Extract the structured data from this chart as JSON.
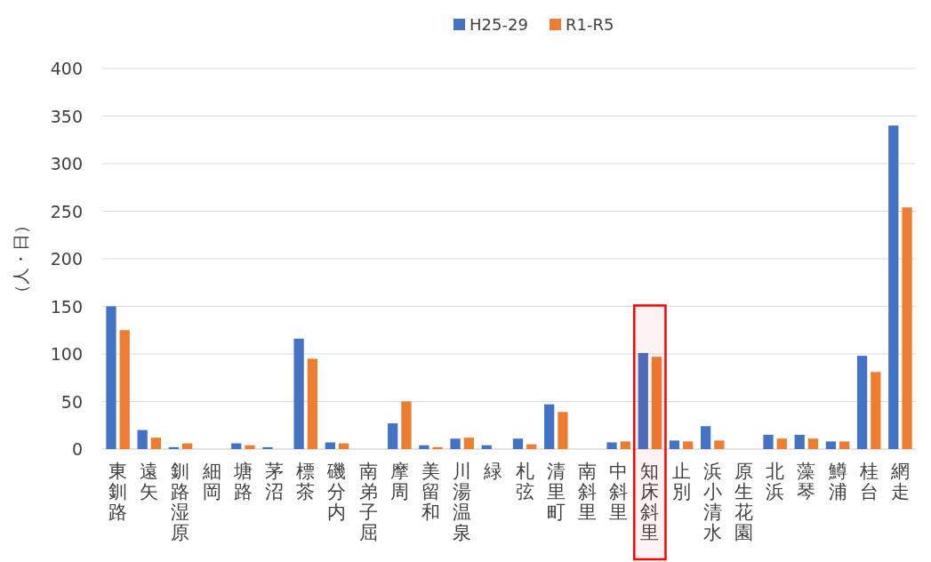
{
  "chart_data": {
    "type": "bar",
    "ylabel": "（人・日）",
    "categories": [
      "東釧路",
      "遠矢",
      "釧路湿原",
      "細岡",
      "塘路",
      "茅沼",
      "標茶",
      "磯分内",
      "南弟子屈",
      "摩周",
      "美留和",
      "川湯温泉",
      "緑",
      "札弦",
      "清里町",
      "南斜里",
      "中斜里",
      "知床斜里",
      "止別",
      "浜小清水",
      "原生花園",
      "北浜",
      "藻琴",
      "鱒浦",
      "桂台",
      "網走"
    ],
    "series": [
      {
        "name": "H25-29",
        "color": "#4472c4",
        "values": [
          150,
          20,
          2,
          0,
          6,
          2,
          116,
          7,
          0,
          27,
          4,
          11,
          4,
          11,
          47,
          0,
          7,
          101,
          9,
          24,
          0,
          15,
          15,
          8,
          98,
          340
        ]
      },
      {
        "name": "R1-R5",
        "color": "#ed7d31",
        "values": [
          125,
          12,
          6,
          0,
          4,
          0,
          95,
          6,
          0,
          50,
          2,
          12,
          0,
          5,
          39,
          0,
          8,
          97,
          8,
          9,
          0,
          11,
          11,
          8,
          81,
          254
        ]
      }
    ],
    "ylim": [
      0,
      400
    ],
    "yticks": [
      0,
      50,
      100,
      150,
      200,
      250,
      300,
      350,
      400
    ],
    "grid": "y",
    "legend": "top",
    "bands": [
      {
        "axis": "x",
        "from": "知床斜里",
        "to": "知床斜里",
        "color": "#ff0000"
      }
    ]
  }
}
